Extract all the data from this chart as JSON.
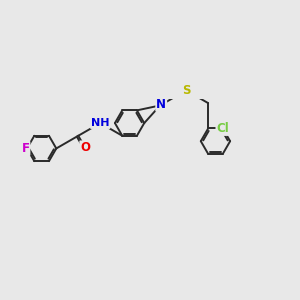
{
  "bg_color": "#e8e8e8",
  "bond_color": "#2a2a2a",
  "bond_width": 1.4,
  "dbo": 0.055,
  "figsize": [
    3.0,
    3.0
  ],
  "dpi": 100,
  "colors": {
    "F": "#cc00cc",
    "O": "#ee0000",
    "N": "#0000dd",
    "S": "#b8b800",
    "Cl": "#77cc44",
    "C": "#2a2a2a"
  },
  "fs": 8.5
}
